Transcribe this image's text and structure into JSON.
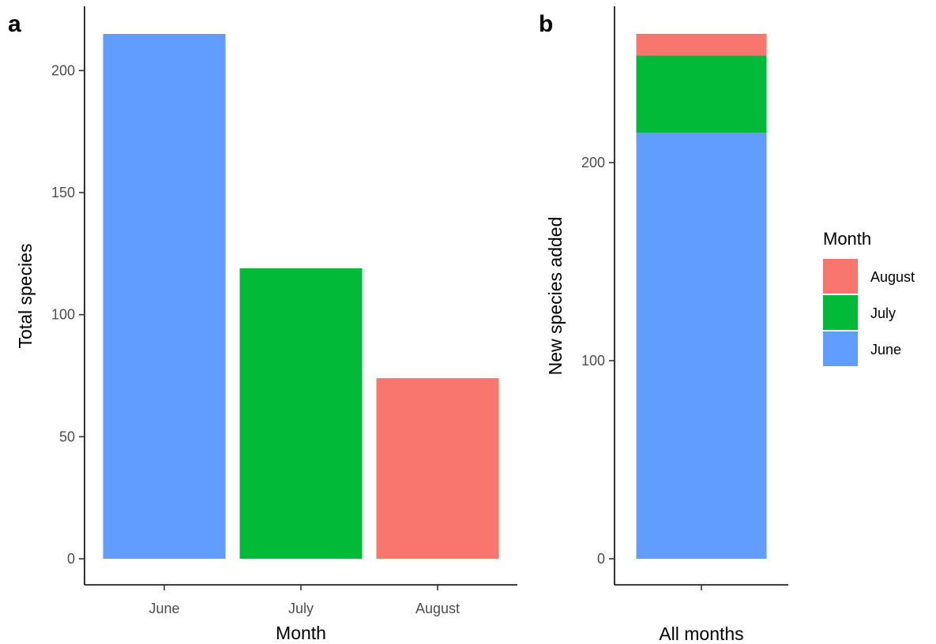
{
  "chart_data": [
    {
      "panel": "a",
      "type": "bar",
      "categories": [
        "June",
        "July",
        "August"
      ],
      "values": [
        215,
        119,
        74
      ],
      "colors": [
        "#619CFF",
        "#00BA38",
        "#F8766D"
      ],
      "xlabel": "Month",
      "ylabel": "Total species",
      "ylim": [
        0,
        215
      ],
      "yticks": [
        0,
        50,
        100,
        150,
        200
      ],
      "grid": false
    },
    {
      "panel": "b",
      "type": "bar",
      "stacked": true,
      "categories": [
        ""
      ],
      "series": [
        {
          "name": "June",
          "values": [
            215
          ],
          "color": "#619CFF"
        },
        {
          "name": "July",
          "values": [
            39
          ],
          "color": "#00BA38"
        },
        {
          "name": "August",
          "values": [
            11
          ],
          "color": "#F8766D"
        }
      ],
      "xlabel": "All months",
      "ylabel": "New species added",
      "ylim": [
        0,
        265
      ],
      "yticks": [
        0,
        100,
        200
      ],
      "grid": false,
      "legend": {
        "title": "Month",
        "placement": "right",
        "entries": [
          {
            "label": "August",
            "color": "#F8766D"
          },
          {
            "label": "July",
            "color": "#00BA38"
          },
          {
            "label": "June",
            "color": "#619CFF"
          }
        ]
      }
    }
  ]
}
